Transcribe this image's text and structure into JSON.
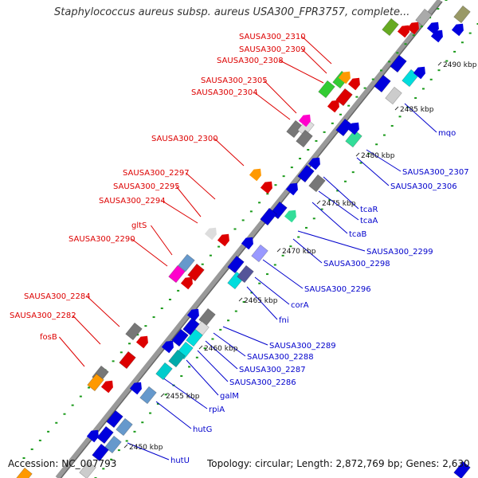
{
  "title": "Staphylococcus aureus subsp. aureus USA300_FPR3757, complete...",
  "footer": {
    "accession": "Accession: NC_007793",
    "topology": "Topology: circular; Length: 2,872,769 bp; Genes: 2,630"
  },
  "colors": {
    "backbone": "#999999",
    "forward_label": "#dd0000",
    "reverse_label": "#0000cc",
    "dots": "#1a9a1a",
    "ruler_text": "#111111"
  },
  "ruler_labels": [
    "2450 kbp",
    "2455 kbp",
    "2460 kbp",
    "2465 kbp",
    "2470 kbp",
    "2475 kbp",
    "2480 kbp",
    "2485 kbp",
    "2490 kbp"
  ],
  "forward_labels": [
    "SAUSA300_2310",
    "SAUSA300_2309",
    "SAUSA300_2308",
    "SAUSA300_2305",
    "SAUSA300_2304",
    "SAUSA300_2300",
    "SAUSA300_2297",
    "SAUSA300_2295",
    "SAUSA300_2294",
    "gltS",
    "SAUSA300_2290",
    "SAUSA300_2284",
    "SAUSA300_2282",
    "fosB"
  ],
  "reverse_labels": [
    "mqo",
    "SAUSA300_2307",
    "SAUSA300_2306",
    "tcaR",
    "tcaA",
    "tcaB",
    "SAUSA300_2299",
    "SAUSA300_2298",
    "SAUSA300_2296",
    "corA",
    "fni",
    "SAUSA300_2289",
    "SAUSA300_2288",
    "SAUSA300_2287",
    "SAUSA300_2286",
    "galM",
    "rpiA",
    "hutG",
    "hutU"
  ]
}
